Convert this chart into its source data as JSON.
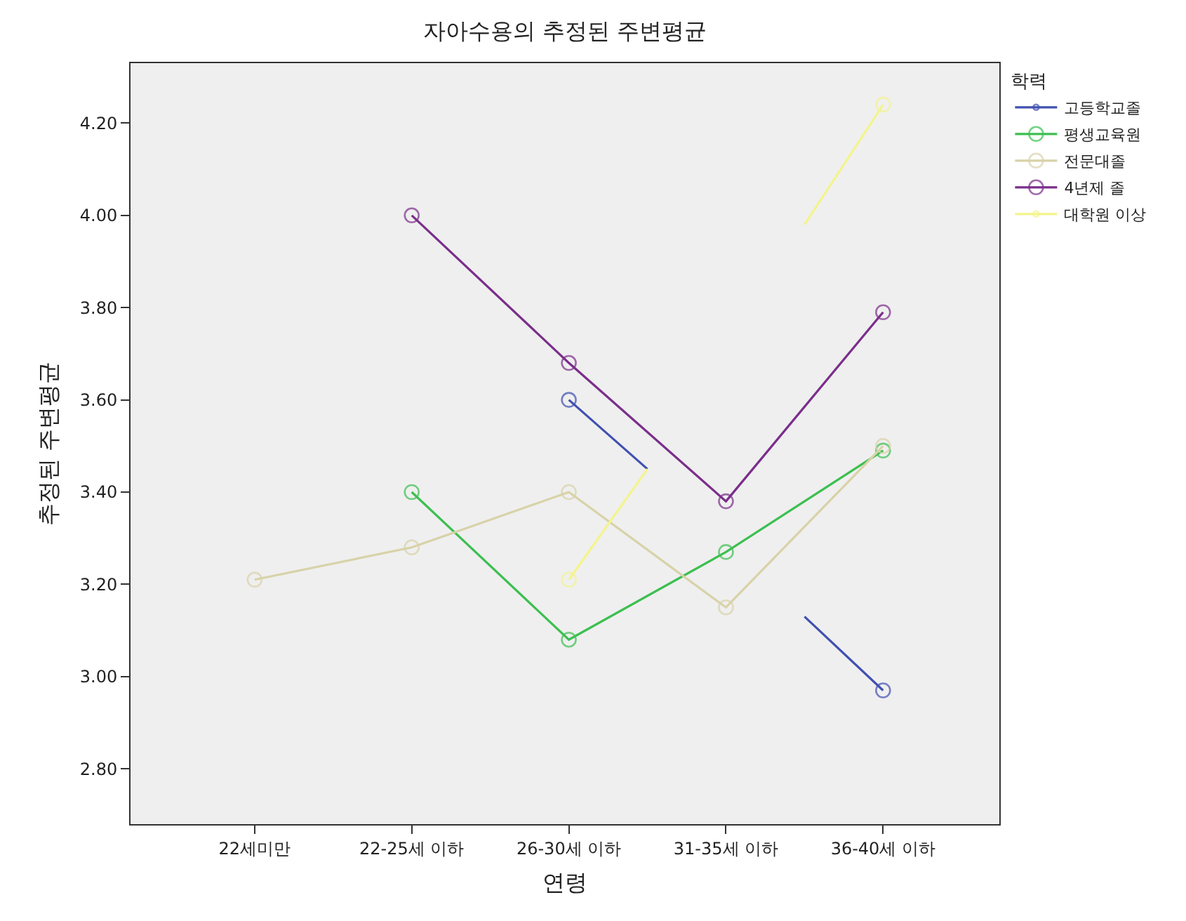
{
  "chart_data": {
    "type": "line",
    "title": "자아수용의 추정된 주변평균",
    "xlabel": "연령",
    "ylabel": "추정된 주변평균",
    "legend_title": "학력",
    "categories": [
      "22세미만",
      null,
      "22-25세 이하",
      null,
      "26-30세 이하",
      null,
      "31-35세 이하",
      null,
      "36-40세 이하"
    ],
    "ylim": [
      2.68,
      4.33
    ],
    "yticks": [
      {
        "value": 2.8,
        "label": "2.80"
      },
      {
        "value": 3.0,
        "label": "3.00"
      },
      {
        "value": 3.2,
        "label": "3.20"
      },
      {
        "value": 3.4,
        "label": "3.40"
      },
      {
        "value": 3.6,
        "label": "3.60"
      },
      {
        "value": 3.8,
        "label": "3.80"
      },
      {
        "value": 4.0,
        "label": "4.00"
      },
      {
        "value": 4.2,
        "label": "4.20"
      }
    ],
    "series": [
      {
        "name": "고등학교졸",
        "color": "#4050b0",
        "values": [
          null,
          null,
          null,
          null,
          3.6,
          3.45,
          null,
          3.13,
          2.97
        ]
      },
      {
        "name": "평생교육원",
        "color": "#3cbf50",
        "values": [
          null,
          null,
          3.4,
          null,
          3.08,
          null,
          3.27,
          null,
          3.49
        ]
      },
      {
        "name": "전문대졸",
        "color": "#d8d2a8",
        "values": [
          3.21,
          null,
          3.28,
          null,
          3.4,
          null,
          3.15,
          null,
          3.5
        ]
      },
      {
        "name": "4년제 졸",
        "color": "#7a2e8a",
        "values": [
          null,
          null,
          4.0,
          null,
          3.68,
          null,
          3.38,
          null,
          3.79
        ]
      },
      {
        "name": "대학원 이상",
        "color": "#f4f48c",
        "values": [
          null,
          null,
          null,
          null,
          3.21,
          3.45,
          null,
          3.98,
          4.24
        ]
      }
    ],
    "grid": false,
    "legend": "top right",
    "marker": "circle",
    "line_style": "solid"
  }
}
